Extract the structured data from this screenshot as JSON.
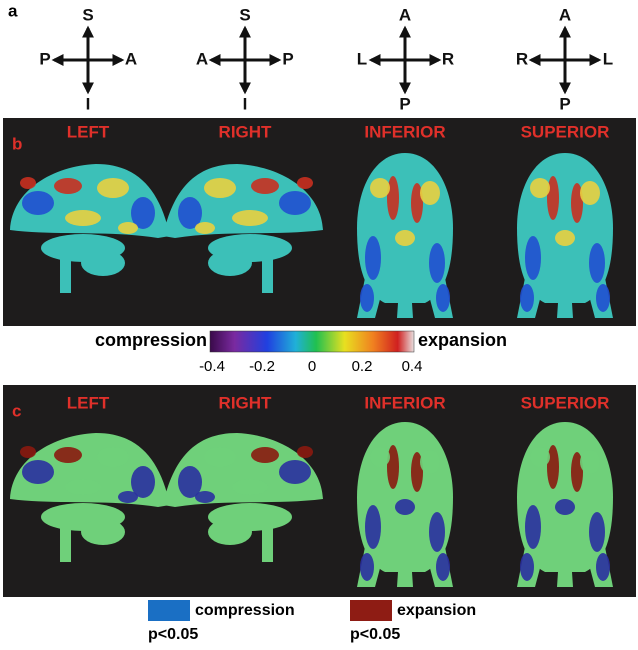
{
  "panel_a": {
    "label": "a",
    "compasses": [
      {
        "top": "S",
        "bottom": "I",
        "left": "P",
        "right": "A"
      },
      {
        "top": "S",
        "bottom": "I",
        "left": "A",
        "right": "P"
      },
      {
        "top": "A",
        "bottom": "P",
        "left": "L",
        "right": "R"
      },
      {
        "top": "A",
        "bottom": "P",
        "left": "R",
        "right": "L"
      }
    ]
  },
  "panel_b": {
    "label": "b",
    "views": [
      "LEFT",
      "RIGHT",
      "INFERIOR",
      "SUPERIOR"
    ]
  },
  "colorbar": {
    "low_label": "compression",
    "high_label": "expansion",
    "range": [
      -0.4,
      0.4
    ],
    "ticks": [
      -0.4,
      -0.2,
      0,
      0.2,
      0.4
    ]
  },
  "panel_c": {
    "label": "c",
    "views": [
      "LEFT",
      "RIGHT",
      "INFERIOR",
      "SUPERIOR"
    ]
  },
  "legend": [
    {
      "label": "compression",
      "significance": "p<0.05",
      "color": "#1a6fc4"
    },
    {
      "label": "expansion",
      "significance": "p<0.05",
      "color": "#8e1c14"
    }
  ]
}
